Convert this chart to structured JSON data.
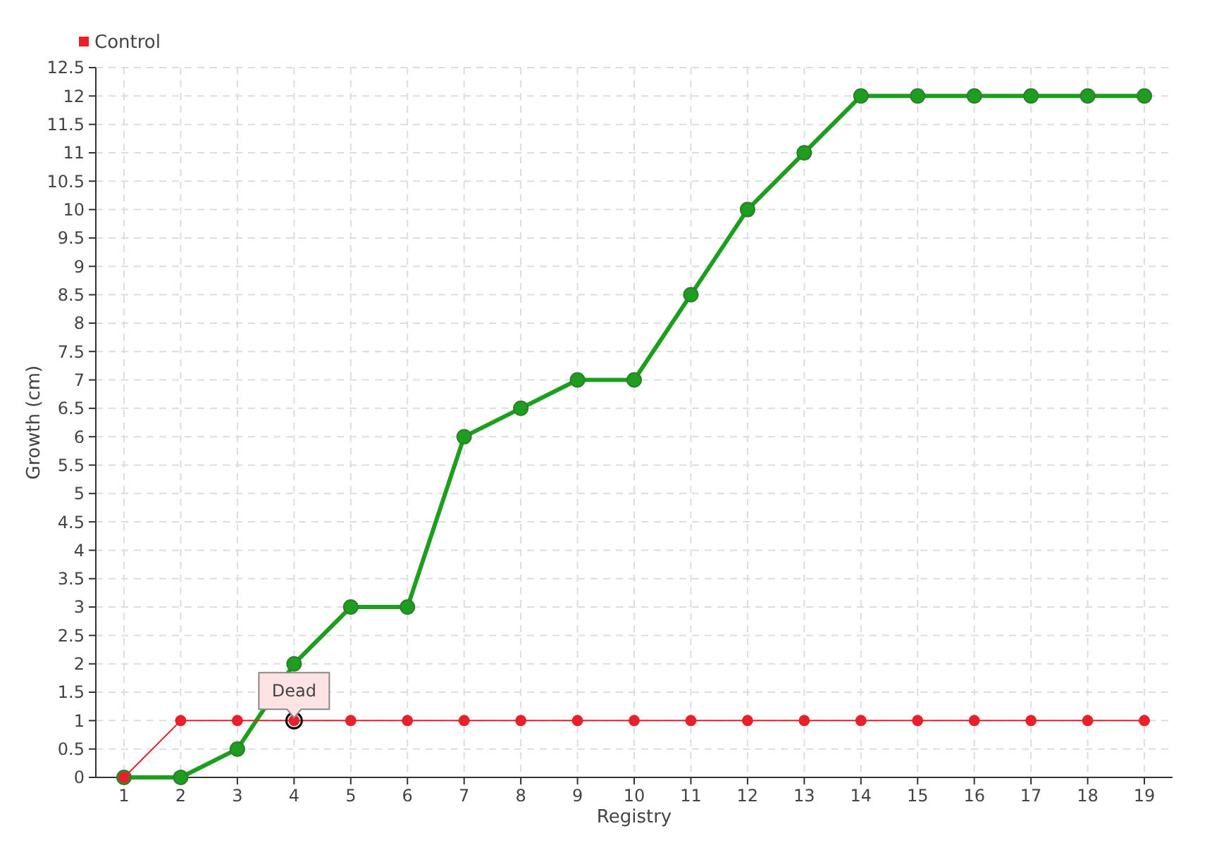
{
  "chart_data": {
    "type": "line",
    "xlabel": "Registry",
    "ylabel": "Growth (cm)",
    "categories": [
      "1",
      "2",
      "3",
      "4",
      "5",
      "6",
      "7",
      "8",
      "9",
      "10",
      "11",
      "12",
      "13",
      "14",
      "15",
      "16",
      "17",
      "18",
      "19"
    ],
    "series": [
      {
        "color": "#1e9e1e",
        "values": [
          0,
          0,
          0.5,
          2,
          3,
          3,
          6,
          6.5,
          7,
          7,
          8.5,
          10,
          11,
          12,
          12,
          12,
          12,
          12,
          12
        ]
      },
      {
        "name": "Control",
        "color": "#e8202a",
        "values": [
          0,
          1,
          1,
          1,
          1,
          1,
          1,
          1,
          1,
          1,
          1,
          1,
          1,
          1,
          1,
          1,
          1,
          1,
          1
        ]
      }
    ],
    "ylim": [
      0,
      12.5
    ],
    "yticks": [
      0,
      0.5,
      1,
      1.5,
      2,
      2.5,
      3,
      3.5,
      4,
      4.5,
      5,
      5.5,
      6,
      6.5,
      7,
      7.5,
      8,
      8.5,
      9,
      9.5,
      10,
      10.5,
      11,
      11.5,
      12,
      12.5
    ],
    "annotations": [
      {
        "text": "Dead",
        "x": "4",
        "y": 1
      }
    ],
    "grid": true,
    "legend": "top left",
    "marker": "circle"
  }
}
